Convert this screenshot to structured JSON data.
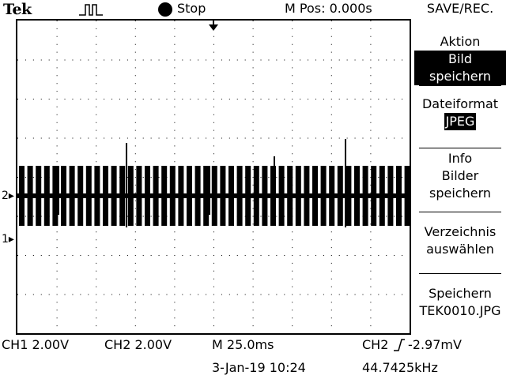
{
  "header": {
    "brand": "Tek",
    "run_state": "Stop",
    "horizontal_position": "M Pos: 0.000s",
    "menu_title": "SAVE/REC."
  },
  "side_menu": {
    "action": {
      "label": "Aktion",
      "value": "Bild speichern"
    },
    "file_format": {
      "label": "Dateiformat",
      "value": "JPEG"
    },
    "info": {
      "line1": "Info",
      "line2": "Bilder",
      "line3": "speichern"
    },
    "select_folder": {
      "line1": "Verzeichnis",
      "line2": "auswählen"
    },
    "save": {
      "line1": "Speichern",
      "line2": "TEK0010.JPG"
    }
  },
  "screen": {
    "ch2_marker": "2",
    "ch1_marker": "1"
  },
  "status": {
    "ch1": "CH1  2.00V",
    "ch2": "CH2  2.00V",
    "timebase": "M 25.0ms",
    "trigger_source": "CH2",
    "trigger_level": "-2.97mV",
    "datetime": "3-Jan-19 10:24",
    "frequency": "44.7425kHz"
  },
  "colors": {
    "foreground": "#000000",
    "background": "#ffffff"
  }
}
